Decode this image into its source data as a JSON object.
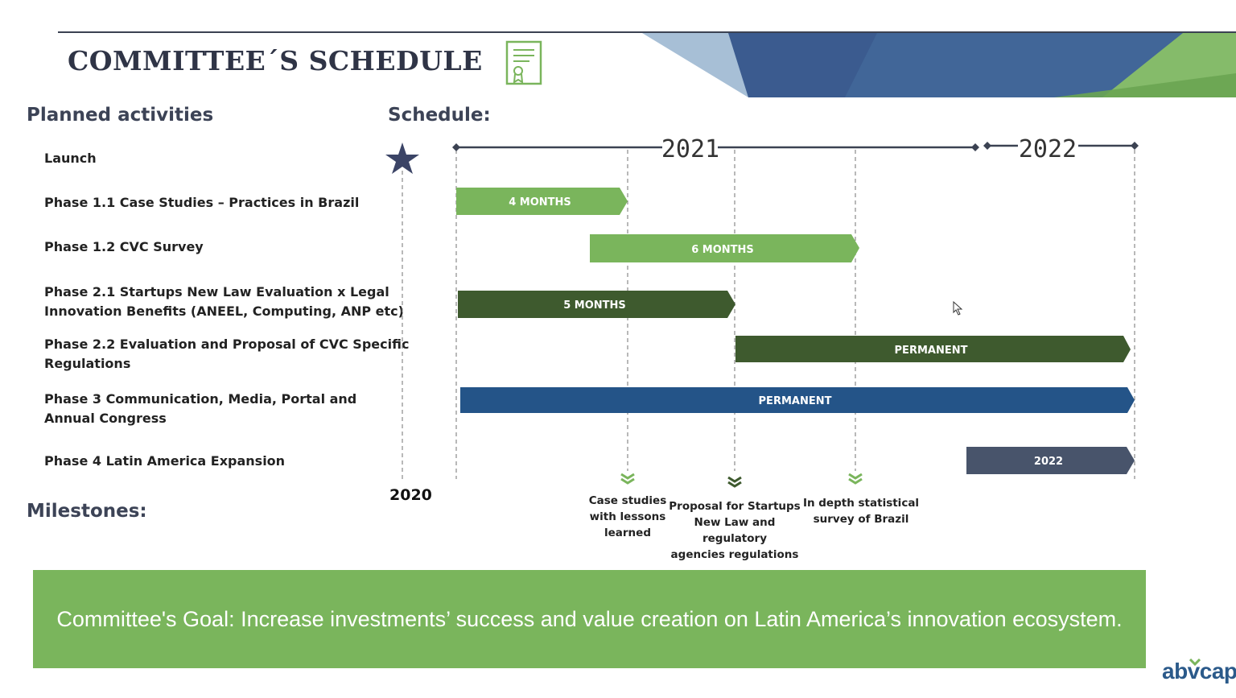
{
  "header": {
    "title": "COMMITTEE´S SCHEDULE"
  },
  "sections": {
    "planned_activities": "Planned activities",
    "schedule": "Schedule:",
    "milestones": "Milestones:"
  },
  "activities": [
    {
      "lines": [
        "Launch"
      ]
    },
    {
      "lines": [
        "Phase 1.1 Case Studies – Practices in Brazil"
      ]
    },
    {
      "lines": [
        "Phase 1.2 CVC Survey"
      ]
    },
    {
      "lines": [
        "Phase 2.1  Startups New Law Evaluation x Legal",
        "Innovation Benefits (ANEEL, Computing, ANP etc)"
      ]
    },
    {
      "lines": [
        "Phase 2.2  Evaluation and Proposal of CVC Specific",
        "Regulations"
      ]
    },
    {
      "lines": [
        "Phase  3 Communication, Media, Portal and",
        "Annual Congress"
      ]
    },
    {
      "lines": [
        "Phase  4 Latin America Expansion"
      ]
    }
  ],
  "timeline": {
    "year_2021": "2021",
    "year_2022": "2022",
    "start_year": "2020"
  },
  "bars": [
    {
      "label": "4 MONTHS",
      "color": "#7ab55c"
    },
    {
      "label": "6 MONTHS",
      "color": "#7ab55c"
    },
    {
      "label": "5 MONTHS",
      "color": "#3e5a2e"
    },
    {
      "label": "PERMANENT",
      "color": "#3e5a2e"
    },
    {
      "label": "PERMANENT",
      "color": "#245488"
    },
    {
      "label": "2022",
      "color": "#48546b"
    }
  ],
  "milestones": [
    {
      "lines": [
        "Case studies",
        "with lessons",
        "learned"
      ],
      "chevron_color": "#7ab55c"
    },
    {
      "lines": [
        "Proposal for Startups",
        "New Law and regulatory",
        "agencies regulations"
      ],
      "chevron_color": "#3e5a2e"
    },
    {
      "lines": [
        "In depth statistical",
        "survey of Brazil"
      ],
      "chevron_color": "#7ab55c"
    }
  ],
  "goal": {
    "text": "Committee's Goal: Increase investments’ success and value creation on Latin America’s innovation ecosystem."
  },
  "logo": {
    "text": "abvcap"
  },
  "icons": {
    "launch": "star-icon",
    "document": "certificate-document-icon",
    "cursor": "mouse-cursor-icon"
  }
}
